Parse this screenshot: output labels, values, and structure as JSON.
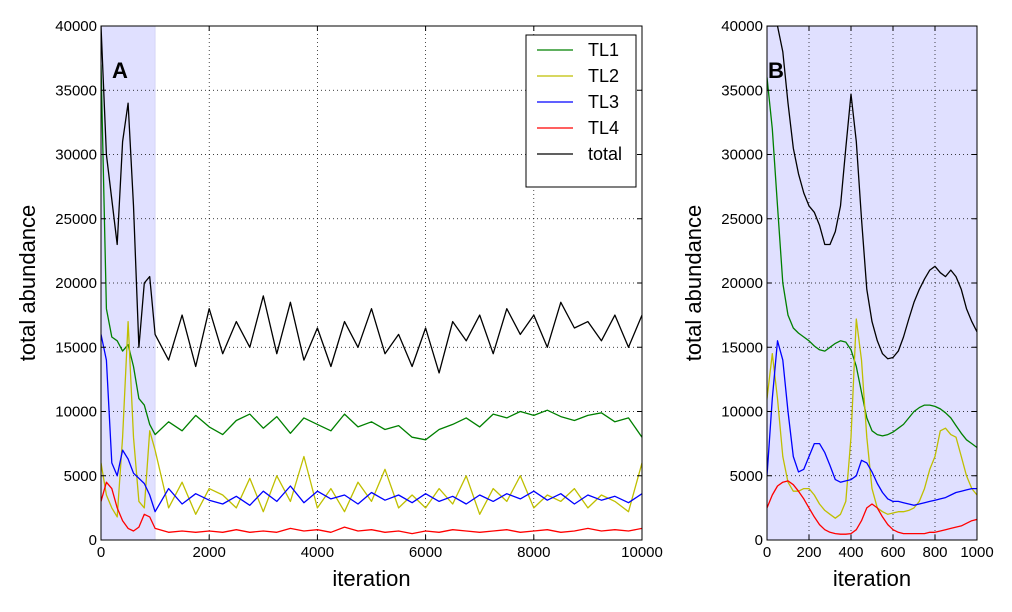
{
  "colors": {
    "TL1": "#008000",
    "TL2": "#bfbf00",
    "TL3": "#0000ff",
    "TL4": "#ff0000",
    "total": "#000000",
    "shade": "#e0e0ff",
    "grid": "#000000"
  },
  "chart_data": [
    {
      "type": "line",
      "panel_label": "A",
      "xlabel": "iteration",
      "ylabel": "total abundance",
      "xlim": [
        0,
        10000
      ],
      "ylim": [
        0,
        40000
      ],
      "x_ticks": [
        0,
        2000,
        4000,
        6000,
        8000,
        10000
      ],
      "y_ticks": [
        0,
        5000,
        10000,
        15000,
        20000,
        25000,
        30000,
        35000,
        40000
      ],
      "grid": true,
      "shaded_x_range": [
        0,
        1000
      ],
      "legend": {
        "placement": "top-right",
        "entries": [
          "TL1",
          "TL2",
          "TL3",
          "TL4",
          "total"
        ]
      },
      "x": [
        0,
        100,
        200,
        300,
        400,
        500,
        600,
        700,
        800,
        900,
        1000,
        1250,
        1500,
        1750,
        2000,
        2250,
        2500,
        2750,
        3000,
        3250,
        3500,
        3750,
        4000,
        4250,
        4500,
        4750,
        5000,
        5250,
        5500,
        5750,
        6000,
        6250,
        6500,
        6750,
        7000,
        7250,
        7500,
        7750,
        8000,
        8250,
        8500,
        8750,
        9000,
        9250,
        9500,
        9750,
        10000
      ],
      "series": [
        {
          "name": "TL1",
          "values": [
            37000,
            18000,
            15800,
            15500,
            14700,
            15200,
            13500,
            11000,
            10500,
            9000,
            8200,
            9200,
            8500,
            9700,
            8800,
            8200,
            9300,
            9800,
            8700,
            9600,
            8300,
            9500,
            9000,
            8500,
            9800,
            8800,
            9200,
            8600,
            8900,
            8000,
            7800,
            8600,
            9000,
            9500,
            8800,
            9800,
            9500,
            10000,
            9700,
            10100,
            9600,
            9300,
            9700,
            9900,
            9200,
            9500,
            8000
          ]
        },
        {
          "name": "TL2",
          "values": [
            6000,
            3500,
            2500,
            1800,
            8000,
            17000,
            8000,
            3000,
            2500,
            8500,
            7000,
            2500,
            4500,
            2000,
            4000,
            3500,
            2500,
            4800,
            2200,
            5000,
            3000,
            6500,
            2500,
            4000,
            2200,
            4500,
            3000,
            5500,
            2500,
            3500,
            2500,
            4000,
            2800,
            5000,
            2000,
            4000,
            3000,
            5000,
            2500,
            3500,
            3000,
            4000,
            2500,
            3500,
            3000,
            2200,
            6000
          ]
        },
        {
          "name": "TL3",
          "values": [
            16000,
            14000,
            6000,
            5000,
            7000,
            6300,
            5200,
            4800,
            4400,
            3500,
            2200,
            4000,
            2800,
            3600,
            3100,
            2800,
            3400,
            2700,
            3800,
            3000,
            4200,
            2900,
            3800,
            3200,
            3500,
            2800,
            3700,
            3100,
            3500,
            2900,
            3600,
            3000,
            3400,
            2800,
            3500,
            3000,
            3600,
            3200,
            3800,
            3100,
            3600,
            2800,
            3500,
            3100,
            3400,
            2900,
            3600
          ]
        },
        {
          "name": "TL4",
          "values": [
            3000,
            4500,
            4000,
            2500,
            1500,
            900,
            700,
            1000,
            2000,
            1800,
            900,
            600,
            700,
            600,
            700,
            600,
            800,
            600,
            700,
            600,
            900,
            700,
            800,
            600,
            1000,
            700,
            800,
            600,
            700,
            500,
            700,
            600,
            800,
            700,
            600,
            700,
            800,
            600,
            700,
            800,
            600,
            700,
            900,
            700,
            800,
            700,
            900
          ]
        },
        {
          "name": "total",
          "values": [
            40000,
            30000,
            26500,
            23000,
            31000,
            34000,
            26000,
            15000,
            20000,
            20500,
            16000,
            14000,
            17500,
            13500,
            18000,
            14500,
            17000,
            15000,
            19000,
            14500,
            18500,
            14000,
            16500,
            13500,
            17000,
            15000,
            18000,
            14500,
            16000,
            13500,
            16500,
            13000,
            17000,
            15500,
            17500,
            14500,
            18000,
            16000,
            17500,
            15000,
            18500,
            16500,
            17000,
            15500,
            17500,
            15000,
            17500
          ]
        }
      ]
    },
    {
      "type": "line",
      "panel_label": "B",
      "xlabel": "iteration",
      "ylabel": "total abundance",
      "xlim": [
        0,
        1000
      ],
      "ylim": [
        0,
        40000
      ],
      "x_ticks": [
        0,
        200,
        400,
        600,
        800,
        1000
      ],
      "y_ticks": [
        0,
        5000,
        10000,
        15000,
        20000,
        25000,
        30000,
        35000,
        40000
      ],
      "grid": true,
      "shaded_x_range": [
        0,
        1000
      ],
      "x": [
        0,
        25,
        50,
        75,
        100,
        125,
        150,
        175,
        200,
        225,
        250,
        275,
        300,
        325,
        350,
        375,
        400,
        425,
        450,
        475,
        500,
        525,
        550,
        575,
        600,
        625,
        650,
        675,
        700,
        725,
        750,
        775,
        800,
        825,
        850,
        875,
        900,
        925,
        950,
        975,
        1000
      ],
      "series": [
        {
          "name": "TL1",
          "values": [
            36000,
            32000,
            26000,
            20000,
            17500,
            16500,
            16100,
            15800,
            15500,
            15100,
            14800,
            14700,
            15000,
            15300,
            15500,
            15400,
            14800,
            13500,
            11500,
            9500,
            8500,
            8200,
            8100,
            8200,
            8400,
            8700,
            9000,
            9500,
            10000,
            10300,
            10500,
            10500,
            10400,
            10200,
            9900,
            9500,
            8900,
            8300,
            7800,
            7500,
            7200
          ]
        },
        {
          "name": "TL2",
          "values": [
            11000,
            14500,
            11000,
            6500,
            4500,
            3800,
            3800,
            4000,
            4000,
            3500,
            2800,
            2300,
            2000,
            1700,
            2000,
            3000,
            8000,
            17200,
            14000,
            8000,
            4000,
            2500,
            2200,
            2000,
            2100,
            2200,
            2200,
            2300,
            2500,
            3000,
            4000,
            5500,
            6500,
            8500,
            8700,
            8200,
            8000,
            6500,
            5000,
            4000,
            3500
          ]
        },
        {
          "name": "TL3",
          "values": [
            5000,
            11000,
            15500,
            14000,
            10000,
            6500,
            5300,
            5500,
            6500,
            7500,
            7500,
            6800,
            5800,
            4700,
            4500,
            4600,
            4700,
            5000,
            6200,
            6000,
            5300,
            4400,
            3700,
            3200,
            3000,
            3000,
            2900,
            2800,
            2700,
            2800,
            2900,
            3000,
            3100,
            3200,
            3300,
            3500,
            3700,
            3800,
            3900,
            4000,
            4000
          ]
        },
        {
          "name": "TL4",
          "values": [
            2500,
            3500,
            4200,
            4500,
            4600,
            4300,
            3800,
            3200,
            2500,
            1800,
            1200,
            800,
            600,
            500,
            450,
            450,
            500,
            800,
            1500,
            2500,
            2800,
            2500,
            1800,
            1200,
            800,
            600,
            500,
            500,
            500,
            500,
            500,
            600,
            600,
            700,
            800,
            900,
            1000,
            1100,
            1300,
            1500,
            1600
          ]
        },
        {
          "name": "total",
          "values": [
            40000,
            40000,
            40000,
            38000,
            34000,
            30500,
            28500,
            27000,
            26000,
            25500,
            24500,
            23000,
            23000,
            24000,
            26000,
            30500,
            34700,
            31000,
            25000,
            19500,
            17000,
            15500,
            14500,
            14100,
            14200,
            14700,
            15800,
            17200,
            18500,
            19500,
            20300,
            21000,
            21300,
            20800,
            20500,
            21000,
            20500,
            19500,
            18000,
            17000,
            16200
          ]
        }
      ]
    }
  ]
}
